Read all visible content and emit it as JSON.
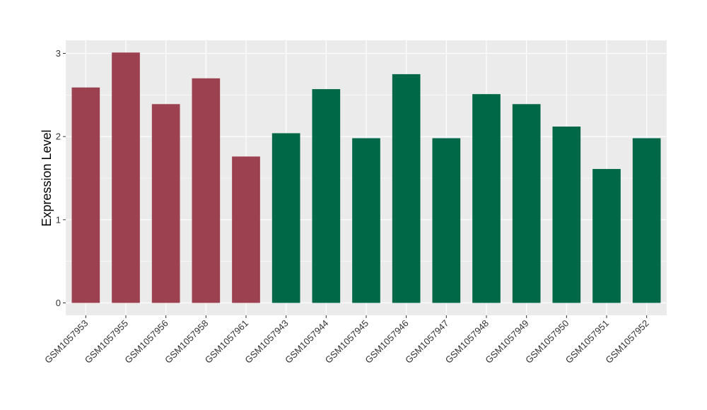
{
  "chart_data": {
    "type": "bar",
    "title": "",
    "xlabel": "",
    "ylabel": "Expression Level",
    "ylim": [
      0,
      3.15
    ],
    "yticks": [
      0,
      1,
      2,
      3
    ],
    "grid": true,
    "categories": [
      "GSM1057953",
      "GSM1057955",
      "GSM1057956",
      "GSM1057958",
      "GSM1057961",
      "GSM1057943",
      "GSM1057944",
      "GSM1057945",
      "GSM1057946",
      "GSM1057947",
      "GSM1057948",
      "GSM1057949",
      "GSM1057950",
      "GSM1057951",
      "GSM1057952"
    ],
    "values": [
      2.59,
      3.01,
      2.39,
      2.7,
      1.76,
      2.04,
      2.57,
      1.98,
      2.75,
      1.98,
      2.51,
      2.39,
      2.12,
      1.61,
      1.98
    ],
    "bar_colors": [
      "#9b4150",
      "#9b4150",
      "#9b4150",
      "#9b4150",
      "#9b4150",
      "#006747",
      "#006747",
      "#006747",
      "#006747",
      "#006747",
      "#006747",
      "#006747",
      "#006747",
      "#006747",
      "#006747"
    ],
    "panel_background": "#ebebeb",
    "grid_color": "#ffffff"
  }
}
